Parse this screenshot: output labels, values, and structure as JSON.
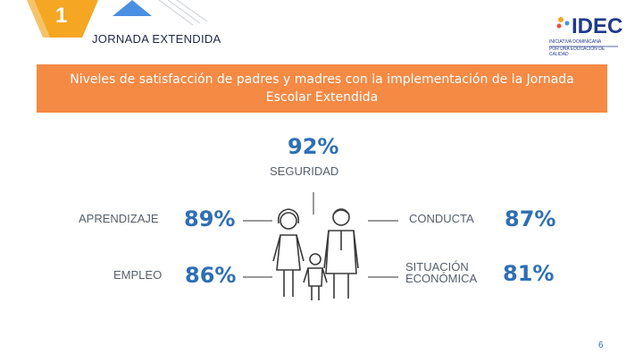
{
  "header": {
    "slide_number": "1",
    "section_title": "JORNADA EXTENDIDA"
  },
  "logo": {
    "text": "IDEC",
    "subtitle_line1": "INICIATIVA DOMINICANA",
    "subtitle_line2": "POR UNA EDUCACIÓN DE CALIDAD"
  },
  "banner": {
    "title": "Niveles de satisfacción de padres y madres con la implementación de la Jornada Escolar Extendida"
  },
  "metrics": {
    "seguridad": {
      "label": "SEGURIDAD",
      "value": "92%"
    },
    "aprendizaje": {
      "label": "APRENDIZAJE",
      "value": "89%"
    },
    "empleo": {
      "label": "EMPLEO",
      "value": "86%"
    },
    "conducta": {
      "label": "CONDUCTA",
      "value": "87%"
    },
    "situacion": {
      "label_line1": "SITUACIÓN",
      "label_line2": "ECONÓMICA",
      "value": "81%"
    }
  },
  "footer": {
    "page_number": "6"
  },
  "colors": {
    "accent_orange": "#f58a45",
    "badge_orange": "#f5a623",
    "value_blue": "#2e6fb5",
    "logo_blue": "#1f3a8a"
  },
  "icons": [
    "family-icon",
    "slide-number-badge",
    "idec-logo"
  ]
}
